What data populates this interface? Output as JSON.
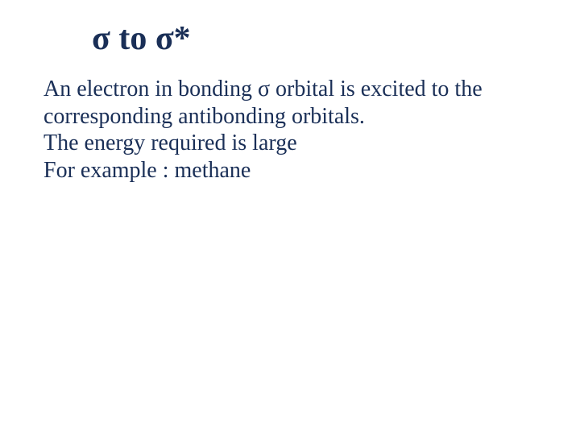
{
  "title": {
    "text": "σ to σ*",
    "color": "#1a2f57",
    "fontsize": 42,
    "weight": "bold"
  },
  "body": {
    "color": "#1a2f57",
    "fontsize": 28,
    "weight": "normal",
    "lines": [
      "An electron in bonding  σ  orbital is excited to the",
      "corresponding antibonding orbitals.",
      "The energy required is large",
      "For example : methane"
    ]
  },
  "background_color": "#ffffff"
}
